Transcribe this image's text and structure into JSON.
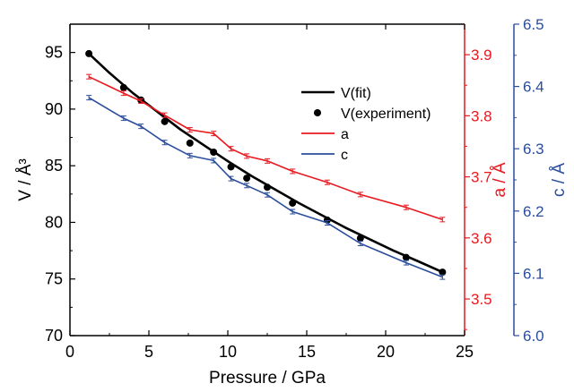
{
  "chart_data": {
    "type": "line",
    "xlabel": "Pressure / GPa",
    "ylabel_left": "V / Å³",
    "ylabel_a": "a / Å",
    "ylabel_c": "c / Å",
    "xlim": [
      0,
      25
    ],
    "ylim_left": [
      70,
      97.5
    ],
    "ylim_a": [
      3.44,
      3.95
    ],
    "ylim_c": [
      6.0,
      6.5
    ],
    "x_ticks": [
      "0",
      "5",
      "10",
      "15",
      "20",
      "25"
    ],
    "y_ticks_left": [
      "70",
      "75",
      "80",
      "85",
      "90",
      "95"
    ],
    "y_ticks_a": [
      "3.5",
      "3.6",
      "3.7",
      "3.8",
      "3.9"
    ],
    "y_ticks_c": [
      "6.0",
      "6.1",
      "6.2",
      "6.3",
      "6.4",
      "6.5"
    ],
    "colors": {
      "fit": "#000000",
      "experiment": "#000000",
      "a": "#e8191f",
      "c": "#2a4d9c"
    },
    "legend": {
      "position": "top-right",
      "fit": "V(fit)",
      "experiment": "V(experiment)",
      "a": "a",
      "c": "c"
    },
    "series": [
      {
        "name": "V(fit)",
        "kind": "line",
        "axis": "left",
        "x": [
          1.2,
          2.5,
          4,
          5.5,
          7,
          8.5,
          10,
          11.5,
          13,
          14.5,
          16,
          17.5,
          19,
          20.5,
          22,
          23.6
        ],
        "values": [
          94.9,
          93.2,
          91.4,
          89.8,
          88.2,
          86.8,
          85.4,
          84.1,
          82.9,
          81.7,
          80.6,
          79.5,
          78.5,
          77.5,
          76.6,
          75.6
        ]
      },
      {
        "name": "V(experiment)",
        "kind": "scatter",
        "axis": "left",
        "x": [
          1.2,
          3.4,
          4.5,
          6.0,
          7.6,
          9.1,
          10.2,
          11.2,
          12.5,
          14.1,
          16.3,
          18.4,
          21.3,
          23.6
        ],
        "values": [
          94.9,
          91.9,
          90.8,
          88.9,
          87.0,
          86.2,
          84.9,
          83.9,
          83.1,
          81.7,
          80.2,
          78.6,
          76.9,
          75.6
        ]
      },
      {
        "name": "a",
        "kind": "line",
        "axis": "a",
        "x": [
          1.2,
          3.4,
          4.5,
          6.0,
          7.6,
          9.1,
          10.2,
          11.2,
          12.5,
          14.1,
          16.3,
          18.4,
          21.3,
          23.6
        ],
        "values": [
          3.864,
          3.837,
          3.824,
          3.801,
          3.777,
          3.771,
          3.746,
          3.734,
          3.726,
          3.709,
          3.691,
          3.671,
          3.65,
          3.63
        ]
      },
      {
        "name": "c",
        "kind": "line",
        "axis": "c",
        "x": [
          1.2,
          3.4,
          4.5,
          6.0,
          7.6,
          9.1,
          10.2,
          11.2,
          12.5,
          14.1,
          16.3,
          18.4,
          21.3,
          23.6
        ],
        "values": [
          6.382,
          6.349,
          6.336,
          6.31,
          6.289,
          6.281,
          6.252,
          6.241,
          6.226,
          6.199,
          6.181,
          6.148,
          6.117,
          6.094
        ]
      }
    ]
  }
}
